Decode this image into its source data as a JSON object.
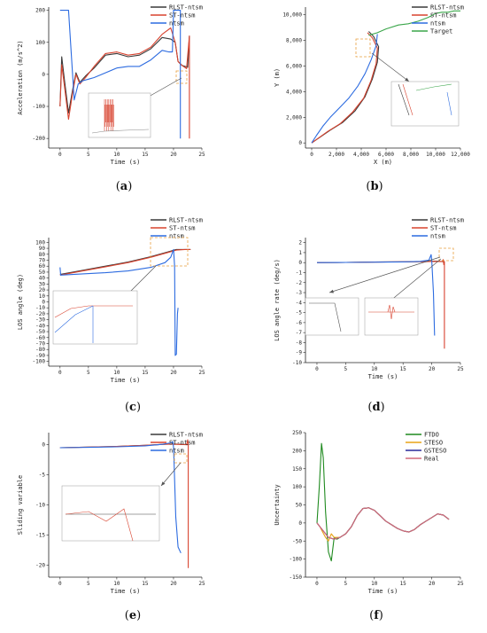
{
  "colors": {
    "rlst": "#3a3a3a",
    "st": "#d8432f",
    "ntsm": "#2c6be0",
    "target": "#3aa64a",
    "ftdo": "#1f8a1f",
    "steso": "#e8a317",
    "gsteso": "#2a2a9a",
    "real": "#d46a7a",
    "zoom_box": "#e8a040"
  },
  "chart_data": [
    {
      "id": "a",
      "panel_label": "(a)",
      "type": "line",
      "xlabel": "Time (s)",
      "ylabel": "Acceleration (m/s^2)",
      "xlim": [
        -2,
        25
      ],
      "ylim": [
        -230,
        210
      ],
      "xticks": [
        0,
        5,
        10,
        15,
        20,
        25
      ],
      "yticks": [
        -200,
        -100,
        0,
        100,
        200
      ],
      "xtick_labels": [
        "0",
        "5",
        "10",
        "15",
        "20",
        "25"
      ],
      "ytick_labels": [
        "-200",
        "-100",
        "0",
        "100",
        "200"
      ],
      "legend": [
        "RLST-ntsm",
        "ST-ntsm",
        "ntsm"
      ],
      "series": [
        {
          "name": "RLST-ntsm",
          "color_key": "rlst",
          "x": [
            0,
            0.3,
            0.8,
            1.5,
            2.2,
            2.8,
            3.5,
            4.5,
            6,
            8,
            10,
            12,
            14,
            16,
            18,
            19.5,
            20.3,
            20.8,
            21.5,
            22.5,
            22.8
          ],
          "y": [
            -100,
            55,
            -20,
            -120,
            -50,
            5,
            -25,
            -5,
            20,
            60,
            65,
            55,
            60,
            80,
            115,
            110,
            100,
            40,
            28,
            22,
            120
          ]
        },
        {
          "name": "ST-ntsm",
          "color_key": "st",
          "x": [
            0,
            0.3,
            0.8,
            1.5,
            2.2,
            2.8,
            3.5,
            4.5,
            6,
            8,
            10,
            12,
            14,
            16,
            18,
            19.5,
            20.3,
            20.8,
            21.5,
            22.3,
            22.8,
            22.8
          ],
          "y": [
            -100,
            30,
            -40,
            -140,
            -60,
            0,
            -30,
            -10,
            25,
            65,
            70,
            60,
            65,
            85,
            125,
            145,
            100,
            40,
            28,
            18,
            120,
            -200
          ]
        },
        {
          "name": "ntsm",
          "color_key": "ntsm",
          "x": [
            0,
            0.5,
            1.5,
            2.5,
            3.2,
            4,
            5,
            6,
            8,
            10,
            12,
            14,
            16,
            18,
            19.2,
            19.8,
            20,
            20,
            20.1,
            21,
            21.2,
            21.2
          ],
          "y": [
            200,
            200,
            200,
            -80,
            -30,
            -20,
            -15,
            -10,
            5,
            20,
            25,
            25,
            45,
            75,
            70,
            70,
            200,
            200,
            200,
            200,
            200,
            -200
          ]
        }
      ],
      "inset_desc": ""
    },
    {
      "id": "b",
      "panel_label": "(b)",
      "type": "line",
      "xlabel": "X (m)",
      "ylabel": "Y (m)",
      "xlim": [
        -500,
        12000
      ],
      "ylim": [
        -400,
        10600
      ],
      "xticks": [
        0,
        2000,
        4000,
        6000,
        8000,
        10000,
        12000
      ],
      "yticks": [
        0,
        2000,
        4000,
        6000,
        8000,
        10000
      ],
      "xtick_labels": [
        "0",
        "2,000",
        "4,000",
        "6,000",
        "8,000",
        "10,000",
        "12,000"
      ],
      "ytick_labels": [
        "0",
        "2,000",
        "4,000",
        "6,000",
        "8,000",
        "10,000"
      ],
      "legend": [
        "RLST-ntsm",
        "ST-ntsm",
        "ntsm",
        "Target"
      ],
      "series": [
        {
          "name": "RLST-ntsm",
          "color_key": "rlst",
          "x": [
            0,
            600,
            1500,
            2500,
            3500,
            4300,
            4900,
            5300,
            5400,
            5000,
            4600
          ],
          "y": [
            0,
            400,
            1000,
            1600,
            2500,
            3600,
            5000,
            6300,
            7500,
            8300,
            8700
          ]
        },
        {
          "name": "ST-ntsm",
          "color_key": "st",
          "x": [
            0,
            500,
            1300,
            2300,
            3300,
            4200,
            4800,
            5200,
            5300,
            4900,
            4500
          ],
          "y": [
            0,
            350,
            900,
            1500,
            2400,
            3500,
            4900,
            6200,
            7400,
            8200,
            8600
          ]
        },
        {
          "name": "ntsm",
          "color_key": "ntsm",
          "x": [
            0,
            400,
            900,
            1500,
            2200,
            3000,
            3700,
            4300,
            4800,
            5200,
            5300
          ],
          "y": [
            0,
            600,
            1300,
            2000,
            2700,
            3500,
            4400,
            5400,
            6500,
            7600,
            8500
          ]
        },
        {
          "name": "Target",
          "color_key": "target",
          "x": [
            4600,
            5300,
            6000,
            7000,
            7800,
            8600,
            9400,
            10000,
            10500,
            11000,
            11500,
            12000
          ],
          "y": [
            8400,
            8600,
            8900,
            9200,
            9300,
            9500,
            9800,
            10100,
            10200,
            10200,
            10300,
            10300
          ]
        }
      ]
    },
    {
      "id": "c",
      "panel_label": "(c)",
      "type": "line",
      "xlabel": "Time (s)",
      "ylabel": "LOS angle (deg)",
      "xlim": [
        -2,
        25
      ],
      "ylim": [
        -108,
        108
      ],
      "xticks": [
        0,
        5,
        10,
        15,
        20,
        25
      ],
      "yticks": [
        -100,
        -90,
        -80,
        -70,
        -60,
        -50,
        -40,
        -30,
        -20,
        -10,
        0,
        10,
        20,
        30,
        40,
        50,
        60,
        70,
        80,
        90,
        100
      ],
      "xtick_labels": [
        "0",
        "5",
        "10",
        "15",
        "20",
        "25"
      ],
      "ytick_labels": [
        "-100",
        "-90",
        "-80",
        "-70",
        "-60",
        "-50",
        "-40",
        "-30",
        "-20",
        "-10",
        "0",
        "10",
        "20",
        "30",
        "40",
        "50",
        "60",
        "70",
        "80",
        "90",
        "100"
      ],
      "legend": [
        "RLST-ntsm",
        "ST-ntsm",
        "ntsm"
      ],
      "series": [
        {
          "name": "RLST-ntsm",
          "color_key": "rlst",
          "x": [
            0,
            4,
            8,
            12,
            16,
            19,
            20.5,
            22,
            23
          ],
          "y": [
            46,
            53,
            60,
            67,
            76,
            84,
            88,
            88,
            88
          ]
        },
        {
          "name": "ST-ntsm",
          "color_key": "st",
          "x": [
            0,
            4,
            8,
            12,
            16,
            19,
            20.5,
            22,
            23
          ],
          "y": [
            45,
            52,
            59,
            66,
            75,
            83,
            87,
            88,
            88
          ]
        },
        {
          "name": "ntsm",
          "color_key": "ntsm",
          "x": [
            0,
            0.1,
            4,
            8,
            12,
            16,
            18.5,
            19.5,
            20,
            20.2,
            20.3,
            20.5,
            20.7,
            20.8
          ],
          "y": [
            58,
            45,
            47,
            49,
            52,
            58,
            66,
            75,
            88,
            60,
            -90,
            -88,
            -20,
            -10
          ]
        }
      ]
    },
    {
      "id": "d",
      "panel_label": "(d)",
      "type": "line",
      "xlabel": "Time (s)",
      "ylabel": "LOS angle rate (deg/s)",
      "xlim": [
        -2,
        25
      ],
      "ylim": [
        -10,
        2.5
      ],
      "xticks": [
        0,
        5,
        10,
        15,
        20,
        25
      ],
      "yticks": [
        -10,
        -9,
        -8,
        -7,
        -6,
        -5,
        -4,
        -3,
        -2,
        -1,
        0,
        1,
        2
      ],
      "xtick_labels": [
        "0",
        "5",
        "10",
        "15",
        "20",
        "25"
      ],
      "ytick_labels": [
        "-10",
        "-9",
        "-8",
        "-7",
        "-6",
        "-5",
        "-4",
        "-3",
        "-2",
        "-1",
        "0",
        "1",
        "2"
      ],
      "legend": [
        "RLST-ntsm",
        "ST-ntsm",
        "ntsm"
      ],
      "series": [
        {
          "name": "RLST-ntsm",
          "color_key": "rlst",
          "x": [
            0,
            5,
            10,
            15,
            19,
            20.5,
            22,
            22.2
          ],
          "y": [
            0,
            0.02,
            0.05,
            0.08,
            0.1,
            0.15,
            0.1,
            0
          ]
        },
        {
          "name": "ST-ntsm",
          "color_key": "st",
          "x": [
            0,
            5,
            10,
            15,
            19,
            20.5,
            21.8,
            22,
            22.1,
            22.2,
            22.2
          ],
          "y": [
            0,
            0.02,
            0.05,
            0.08,
            0.1,
            0.12,
            0.1,
            0.3,
            -0.2,
            0.1,
            -8.6
          ]
        },
        {
          "name": "ntsm",
          "color_key": "ntsm",
          "x": [
            0,
            5,
            10,
            15,
            18,
            19.5,
            19.9,
            20,
            20.3,
            20.5
          ],
          "y": [
            0,
            0.02,
            0.04,
            0.07,
            0.12,
            0.25,
            0.8,
            0.2,
            -3,
            -7.3
          ]
        }
      ]
    },
    {
      "id": "e",
      "panel_label": "(e)",
      "type": "line",
      "xlabel": "Time (s)",
      "ylabel": "Sliding variable",
      "xlim": [
        -2,
        25
      ],
      "ylim": [
        -22,
        2
      ],
      "xticks": [
        0,
        5,
        10,
        15,
        20,
        25
      ],
      "yticks": [
        -20,
        -15,
        -10,
        -5,
        0
      ],
      "xtick_labels": [
        "0",
        "5",
        "10",
        "15",
        "20",
        "25"
      ],
      "ytick_labels": [
        "-20",
        "-15",
        "-10",
        "-5",
        "0"
      ],
      "legend": [
        "RLST-ntsm",
        "ST-ntsm",
        "ntsm"
      ],
      "series": [
        {
          "name": "RLST-ntsm",
          "color_key": "rlst",
          "x": [
            0,
            5,
            10,
            15,
            19,
            20.5,
            22.5
          ],
          "y": [
            -0.5,
            -0.4,
            -0.3,
            -0.1,
            0.1,
            0.1,
            0
          ]
        },
        {
          "name": "ST-ntsm",
          "color_key": "st",
          "x": [
            0,
            5,
            10,
            15,
            19,
            20.5,
            22.3,
            22.5,
            22.6,
            22.6
          ],
          "y": [
            -0.5,
            -0.4,
            -0.3,
            -0.1,
            0.1,
            0.05,
            0,
            0.8,
            -0.2,
            -20.5
          ]
        },
        {
          "name": "ntsm",
          "color_key": "ntsm",
          "x": [
            0,
            5,
            10,
            15,
            18,
            19.5,
            19.9,
            20,
            20.1,
            20.4,
            20.8,
            21.3
          ],
          "y": [
            -0.5,
            -0.45,
            -0.35,
            -0.2,
            0.05,
            0.3,
            0.5,
            -0.5,
            -3,
            -12,
            -17,
            -18
          ]
        }
      ]
    },
    {
      "id": "f",
      "panel_label": "(f)",
      "type": "line",
      "xlabel": "Time (s)",
      "ylabel": "Uncertainty",
      "xlim": [
        -2,
        25
      ],
      "ylim": [
        -150,
        250
      ],
      "xticks": [
        0,
        5,
        10,
        15,
        20,
        25
      ],
      "yticks": [
        -150,
        -100,
        -50,
        0,
        50,
        100,
        150,
        200,
        250
      ],
      "xtick_labels": [
        "0",
        "5",
        "10",
        "15",
        "20",
        "25"
      ],
      "ytick_labels": [
        "-150",
        "-100",
        "-50",
        "0",
        "50",
        "100",
        "150",
        "200",
        "250"
      ],
      "legend": [
        "FTDO",
        "STESO",
        "GSTESO",
        "Real"
      ],
      "series": [
        {
          "name": "FTDO",
          "color_key": "ftdo",
          "x": [
            0,
            0.4,
            0.8,
            1.1,
            1.5,
            2,
            2.5,
            3,
            3.5,
            4,
            5,
            6,
            7,
            8,
            9,
            10,
            11,
            12,
            13,
            14,
            15,
            16,
            17,
            18,
            19,
            20,
            21,
            22,
            23
          ],
          "y": [
            0,
            100,
            220,
            180,
            30,
            -80,
            -105,
            -40,
            -45,
            -40,
            -30,
            -10,
            20,
            40,
            42,
            35,
            20,
            5,
            -5,
            -15,
            -22,
            -25,
            -18,
            -5,
            5,
            15,
            25,
            22,
            10
          ]
        },
        {
          "name": "STESO",
          "color_key": "steso",
          "x": [
            0,
            0.5,
            1,
            1.5,
            2,
            2.5,
            3,
            4,
            5,
            6,
            7,
            8,
            9,
            10,
            11,
            12,
            13,
            14,
            15,
            16,
            17,
            18,
            19,
            20,
            21,
            22,
            23
          ],
          "y": [
            0,
            -10,
            -25,
            -40,
            -50,
            -30,
            -40,
            -40,
            -30,
            -10,
            20,
            40,
            42,
            35,
            20,
            5,
            -5,
            -15,
            -22,
            -25,
            -18,
            -5,
            5,
            15,
            25,
            22,
            10
          ]
        },
        {
          "name": "GSTESO",
          "color_key": "gsteso",
          "x": [
            0,
            0.5,
            1,
            1.5,
            2,
            3,
            4,
            5,
            6,
            7,
            8,
            9,
            10,
            11,
            12,
            13,
            14,
            15,
            16,
            17,
            18,
            19,
            20,
            21,
            22,
            23
          ],
          "y": [
            0,
            -10,
            -20,
            -30,
            -40,
            -45,
            -40,
            -30,
            -10,
            20,
            40,
            42,
            35,
            20,
            5,
            -5,
            -15,
            -22,
            -25,
            -18,
            -5,
            5,
            15,
            25,
            22,
            10
          ]
        },
        {
          "name": "Real",
          "color_key": "real",
          "x": [
            0,
            0.5,
            1,
            1.5,
            2,
            3,
            4,
            5,
            6,
            7,
            8,
            9,
            10,
            11,
            12,
            13,
            14,
            15,
            16,
            17,
            18,
            19,
            20,
            21,
            22,
            23
          ],
          "y": [
            0,
            -10,
            -20,
            -30,
            -40,
            -45,
            -40,
            -30,
            -10,
            20,
            40,
            42,
            35,
            20,
            5,
            -5,
            -15,
            -22,
            -25,
            -18,
            -5,
            5,
            15,
            25,
            22,
            10
          ]
        }
      ]
    }
  ]
}
